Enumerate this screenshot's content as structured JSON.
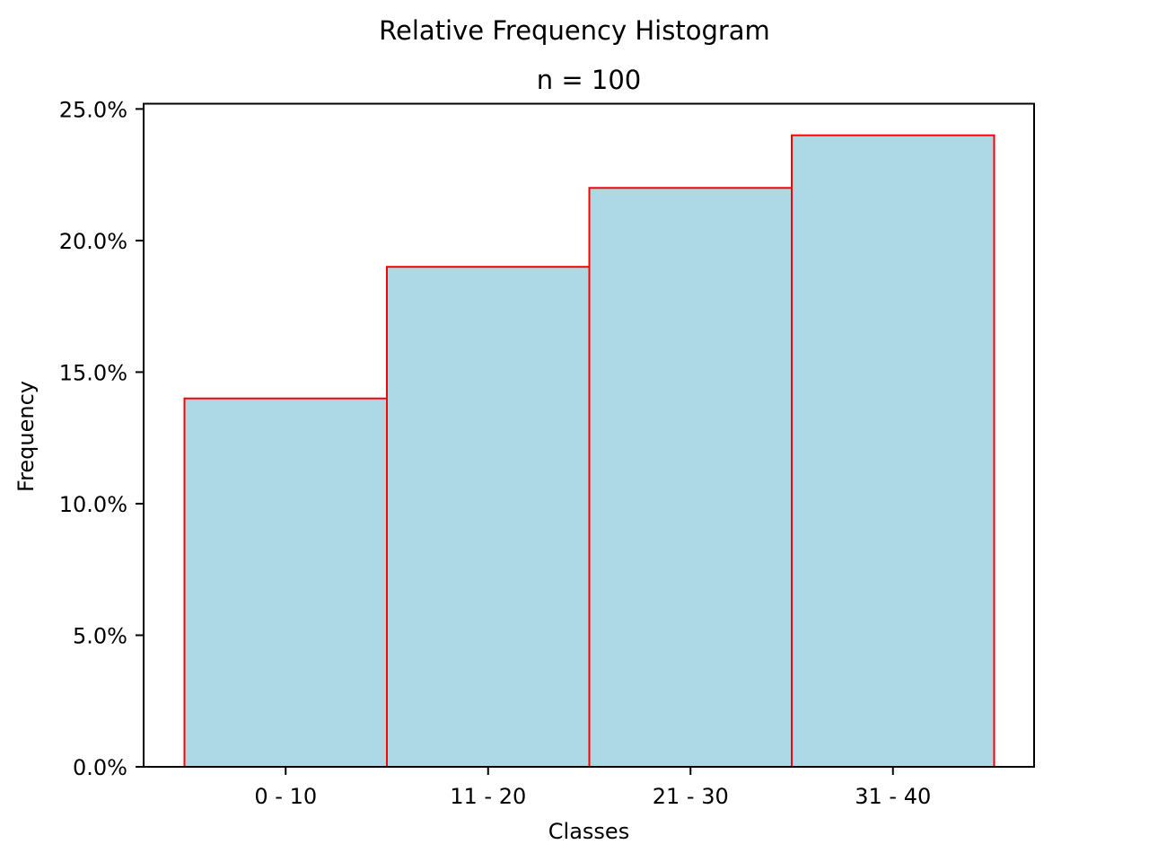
{
  "chart_data": {
    "type": "bar",
    "suptitle": "Relative Frequency Histogram",
    "title": "n = 100",
    "xlabel": "Classes",
    "ylabel": "Frequency",
    "categories": [
      "0 - 10",
      "11 - 20",
      "21 - 30",
      "31 - 40"
    ],
    "values": [
      14,
      19,
      22,
      24
    ],
    "value_format": "percent",
    "ylim": [
      0,
      25.2
    ],
    "yticks": [
      0,
      5,
      10,
      15,
      20,
      25
    ],
    "ytick_labels": [
      "0.0%",
      "5.0%",
      "10.0%",
      "15.0%",
      "20.0%",
      "25.0%"
    ],
    "grid": false,
    "legend": "none",
    "colors": {
      "bar_fill": "#add8e6",
      "bar_edge": "#ff0000",
      "axes": "#000000"
    }
  }
}
